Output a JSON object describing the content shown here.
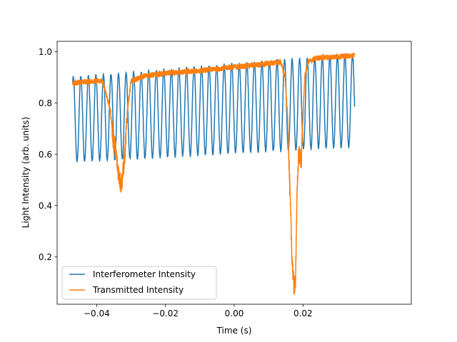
{
  "chart_data": {
    "type": "line",
    "xlabel": "Time (s)",
    "ylabel": "Light Intensity (arb. units)",
    "xlim": [
      -0.0515,
      0.0515
    ],
    "ylim": [
      0.015,
      1.04
    ],
    "xticks": [
      -0.04,
      -0.02,
      0.0,
      0.02
    ],
    "xtick_labels": [
      "−0.04",
      "−0.02",
      "0.00",
      "0.02"
    ],
    "yticks": [
      0.2,
      0.4,
      0.6,
      0.8,
      1.0
    ],
    "ytick_labels": [
      "0.2",
      "0.4",
      "0.6",
      "0.8",
      "1.0"
    ],
    "grid": false,
    "legend_position": "lower-left",
    "series": [
      {
        "name": "Interferometer Intensity",
        "color": "#1f77b4",
        "kind": "oscillation",
        "x_range": [
          -0.047,
          0.035
        ],
        "num_peaks": 38,
        "first_peak_x": -0.0468,
        "last_peak_x": 0.0344,
        "peak_values": [
          0.9,
          0.99
        ],
        "trough_values": [
          0.57,
          0.63
        ]
      },
      {
        "name": "Transmitted Intensity",
        "color": "#ff7f0e",
        "kind": "piecewise",
        "points": [
          [
            -0.047,
            0.875
          ],
          [
            -0.045,
            0.88
          ],
          [
            -0.041,
            0.885
          ],
          [
            -0.0385,
            0.885
          ],
          [
            -0.0375,
            0.85
          ],
          [
            -0.036,
            0.77
          ],
          [
            -0.0352,
            0.66
          ],
          [
            -0.0345,
            0.62
          ],
          [
            -0.034,
            0.56
          ],
          [
            -0.0335,
            0.52
          ],
          [
            -0.033,
            0.48
          ],
          [
            -0.0325,
            0.51
          ],
          [
            -0.0318,
            0.6
          ],
          [
            -0.031,
            0.78
          ],
          [
            -0.03,
            0.885
          ],
          [
            -0.026,
            0.905
          ],
          [
            -0.02,
            0.915
          ],
          [
            -0.01,
            0.925
          ],
          [
            0.0,
            0.94
          ],
          [
            0.008,
            0.95
          ],
          [
            0.0135,
            0.96
          ],
          [
            0.0148,
            0.9
          ],
          [
            0.0155,
            0.75
          ],
          [
            0.0162,
            0.45
          ],
          [
            0.0168,
            0.2
          ],
          [
            0.0174,
            0.07
          ],
          [
            0.0178,
            0.1
          ],
          [
            0.0182,
            0.4
          ],
          [
            0.0187,
            0.6
          ],
          [
            0.0195,
            0.58
          ],
          [
            0.0205,
            0.9
          ],
          [
            0.0215,
            0.96
          ],
          [
            0.024,
            0.975
          ],
          [
            0.03,
            0.98
          ],
          [
            0.035,
            0.985
          ]
        ]
      }
    ]
  }
}
